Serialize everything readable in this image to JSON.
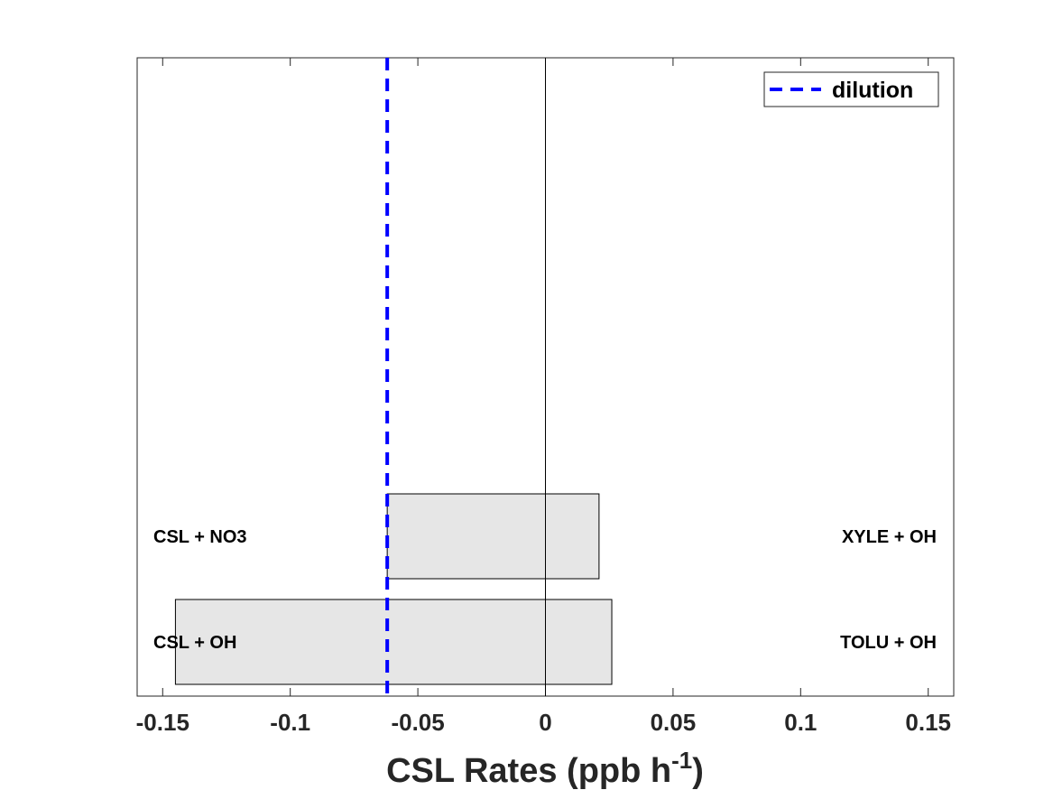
{
  "chart_data": {
    "type": "bar",
    "orientation": "horizontal",
    "xlabel_main": "CSL Rates (ppb h",
    "xlabel_sup": "-1",
    "xlabel_end": ")",
    "xlim": [
      -0.16,
      0.16
    ],
    "xticks": [
      -0.15,
      -0.1,
      -0.05,
      0,
      0.05,
      0.1,
      0.15
    ],
    "xtick_labels": [
      "-0.15",
      "-0.1",
      "-0.05",
      "0",
      "0.05",
      "0.1",
      "0.15"
    ],
    "rows": [
      {
        "loss_label": "CSL + OH",
        "loss_value": -0.145,
        "prod_label": "TOLU + OH",
        "prod_value": 0.026
      },
      {
        "loss_label": "CSL + NO3",
        "loss_value": -0.062,
        "prod_label": "XYLE + OH",
        "prod_value": 0.021
      }
    ],
    "dilution": {
      "name": "dilution",
      "value": -0.062,
      "color": "#0000ff"
    },
    "bar_color": "#e6e6e6",
    "legend_position": "top-right",
    "grid": false
  }
}
